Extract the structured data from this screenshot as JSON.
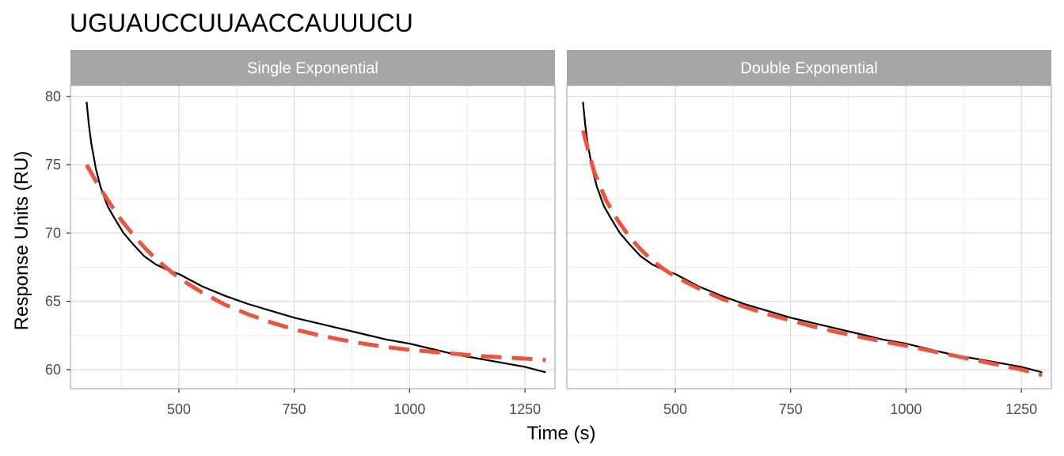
{
  "chart_data": {
    "type": "line",
    "title": "UGUAUCCUUAACCAUUUCU",
    "xlabel": "Time (s)",
    "ylabel": "Response Units (RU)",
    "xlim": [
      265,
      1315
    ],
    "ylim": [
      58.6,
      80.8
    ],
    "x_ticks": [
      500,
      750,
      1000,
      1250
    ],
    "y_ticks": [
      60,
      65,
      70,
      75,
      80
    ],
    "grid": true,
    "colors": {
      "data": "#000000",
      "fit": "#f0523b",
      "strip": "#a6a6a6",
      "grid": "#dedede",
      "panel_border": "#b3b3b3"
    },
    "panels": [
      {
        "label": "Single Exponential",
        "series": [
          {
            "role": "observed",
            "x": [
              300,
              305,
              310,
              320,
              330,
              345,
              360,
              380,
              400,
              425,
              450,
              475,
              500,
              550,
              600,
              650,
              700,
              750,
              800,
              850,
              900,
              950,
              1000,
              1050,
              1100,
              1150,
              1200,
              1250,
              1295
            ],
            "y": [
              79.6,
              77.9,
              76.6,
              74.7,
              73.4,
              72.0,
              71.1,
              70.0,
              69.2,
              68.3,
              67.7,
              67.3,
              67.0,
              66.1,
              65.4,
              64.8,
              64.3,
              63.8,
              63.4,
              63.0,
              62.6,
              62.2,
              61.9,
              61.5,
              61.1,
              60.8,
              60.5,
              60.2,
              59.8
            ]
          },
          {
            "role": "fit",
            "x": [
              300,
              325,
              350,
              375,
              400,
              425,
              450,
              475,
              500,
              550,
              600,
              650,
              700,
              750,
              800,
              850,
              900,
              950,
              1000,
              1050,
              1100,
              1150,
              1200,
              1250,
              1295
            ],
            "y": [
              75.0,
              73.5,
              72.2,
              70.95,
              69.9,
              68.95,
              68.1,
              67.4,
              66.7,
              65.65,
              64.75,
              64.05,
              63.45,
              62.95,
              62.55,
              62.2,
              61.9,
              61.65,
              61.45,
              61.3,
              61.15,
              61.0,
              60.9,
              60.8,
              60.7
            ]
          }
        ]
      },
      {
        "label": "Double Exponential",
        "series": [
          {
            "role": "observed",
            "x": [
              300,
              305,
              310,
              320,
              330,
              345,
              360,
              380,
              400,
              425,
              450,
              475,
              500,
              550,
              600,
              650,
              700,
              750,
              800,
              850,
              900,
              950,
              1000,
              1050,
              1100,
              1150,
              1200,
              1250,
              1295
            ],
            "y": [
              79.6,
              77.9,
              76.6,
              74.7,
              73.4,
              72.0,
              71.1,
              70.0,
              69.2,
              68.3,
              67.7,
              67.3,
              67.0,
              66.1,
              65.4,
              64.8,
              64.3,
              63.8,
              63.4,
              63.0,
              62.6,
              62.2,
              61.9,
              61.5,
              61.1,
              60.8,
              60.5,
              60.2,
              59.8
            ]
          },
          {
            "role": "fit",
            "x": [
              300,
              310,
              325,
              350,
              375,
              400,
              425,
              450,
              475,
              500,
              550,
              600,
              650,
              700,
              750,
              800,
              850,
              900,
              950,
              1000,
              1050,
              1100,
              1150,
              1200,
              1250,
              1295
            ],
            "y": [
              77.5,
              76.2,
              74.4,
              72.4,
              70.95,
              69.75,
              68.8,
              68.0,
              67.35,
              66.8,
              65.95,
              65.2,
              64.6,
              64.05,
              63.6,
              63.15,
              62.75,
              62.4,
              62.05,
              61.75,
              61.4,
              61.05,
              60.7,
              60.35,
              60.0,
              59.6
            ]
          }
        ]
      }
    ]
  }
}
